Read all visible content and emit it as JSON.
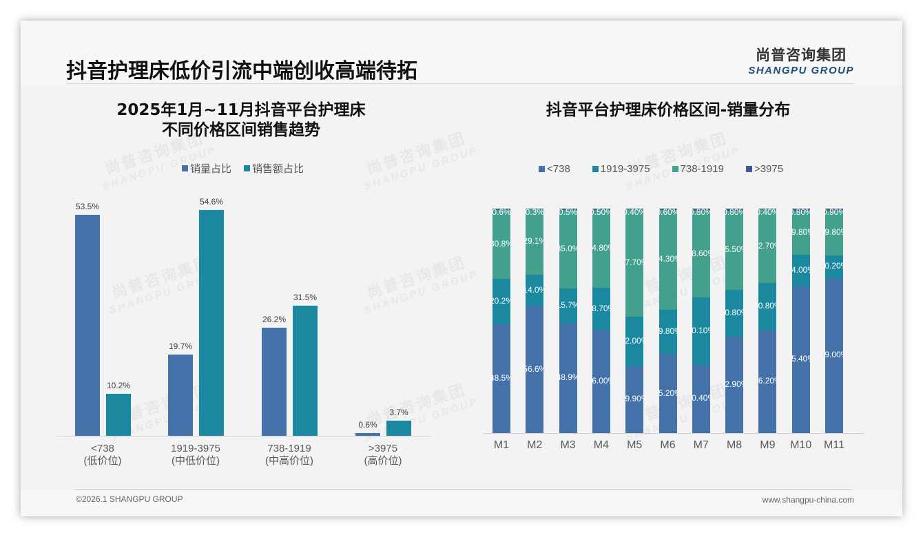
{
  "header": {
    "title": "抖音护理床低价引流中端创收高端待拓",
    "logo_cn": "尚普咨询集团",
    "logo_en": "SHANGPU GROUP"
  },
  "footer": {
    "copyright": "©2026.1 SHANGPU GROUP",
    "website": "www.shangpu-china.com"
  },
  "watermark": {
    "cn": "尚普咨询集团",
    "en": "SHANGPU GROUP"
  },
  "colors": {
    "blue": "#4472a8",
    "teal": "#1a89a0",
    "green": "#42a08c",
    "navy": "#3f5a94"
  },
  "chart_data": [
    {
      "type": "bar",
      "title": "2025年1月~11月抖音平台护理床",
      "subtitle": "不同价格区间销售趋势",
      "categories": [
        "<738",
        "1919-3975",
        "738-1919",
        ">3975"
      ],
      "category_sublabels": [
        "(低价位)",
        "(中低价位)",
        "(中高价位)",
        "(高价位)"
      ],
      "series": [
        {
          "name": "销量占比",
          "color": "#4472a8",
          "values": [
            53.5,
            19.7,
            26.2,
            0.6
          ],
          "labels": [
            "53.5%",
            "19.7%",
            "26.2%",
            "0.6%"
          ]
        },
        {
          "name": "销售额占比",
          "color": "#1a89a0",
          "values": [
            10.2,
            54.6,
            31.5,
            3.7
          ],
          "labels": [
            "10.2%",
            "54.6%",
            "31.5%",
            "3.7%"
          ]
        }
      ],
      "xlabel": "",
      "ylabel": "",
      "ylim": [
        0,
        55
      ],
      "grid": false,
      "legend_position": "top"
    },
    {
      "type": "bar",
      "stacked": true,
      "title": "抖音平台护理床价格区间-销量分布",
      "categories": [
        "M1",
        "M2",
        "M3",
        "M4",
        "M5",
        "M6",
        "M7",
        "M8",
        "M9",
        "M10",
        "M11"
      ],
      "series": [
        {
          "name": "<738",
          "color": "#4472a8",
          "values": [
            48.5,
            56.6,
            48.9,
            46.0,
            29.9,
            35.2,
            30.4,
            42.9,
            46.2,
            65.4,
            69.0
          ],
          "labels": [
            "48.5%",
            "56.6%",
            "48.9%",
            "46.00%",
            "29.90%",
            "35.20%",
            "30.40%",
            "42.90%",
            "46.20%",
            "65.40%",
            "69.00%"
          ]
        },
        {
          "name": "1919-3975",
          "color": "#1a89a0",
          "values": [
            20.2,
            14.0,
            15.7,
            18.7,
            22.0,
            19.8,
            30.1,
            20.8,
            20.8,
            14.0,
            10.2
          ],
          "labels": [
            "20.2%",
            "14.0%",
            "15.7%",
            "18.70%",
            "22.00%",
            "19.80%",
            "30.10%",
            "20.80%",
            "20.80%",
            "14.00%",
            "10.20%"
          ]
        },
        {
          "name": "738-1919",
          "color": "#42a08c",
          "values": [
            30.8,
            29.1,
            35.0,
            34.8,
            47.7,
            44.3,
            38.6,
            35.5,
            32.7,
            19.8,
            19.8
          ],
          "labels": [
            "30.8%",
            "29.1%",
            "35.0%",
            "34.80%",
            "47.70%",
            "44.30%",
            "38.60%",
            "35.50%",
            "32.70%",
            "19.80%",
            "19.80%"
          ]
        },
        {
          "name": ">3975",
          "color": "#3f5a94",
          "values": [
            0.6,
            0.3,
            0.5,
            0.5,
            0.4,
            0.6,
            0.8,
            0.8,
            0.4,
            0.8,
            0.9
          ],
          "labels": [
            "0.6%",
            "0.3%",
            "0.5%",
            "0.50%",
            "0.40%",
            "0.60%",
            "0.80%",
            "0.80%",
            "0.40%",
            "0.80%",
            "0.90%"
          ]
        }
      ],
      "xlabel": "",
      "ylabel": "",
      "ylim": [
        0,
        100
      ],
      "grid": false,
      "legend_position": "top"
    }
  ]
}
